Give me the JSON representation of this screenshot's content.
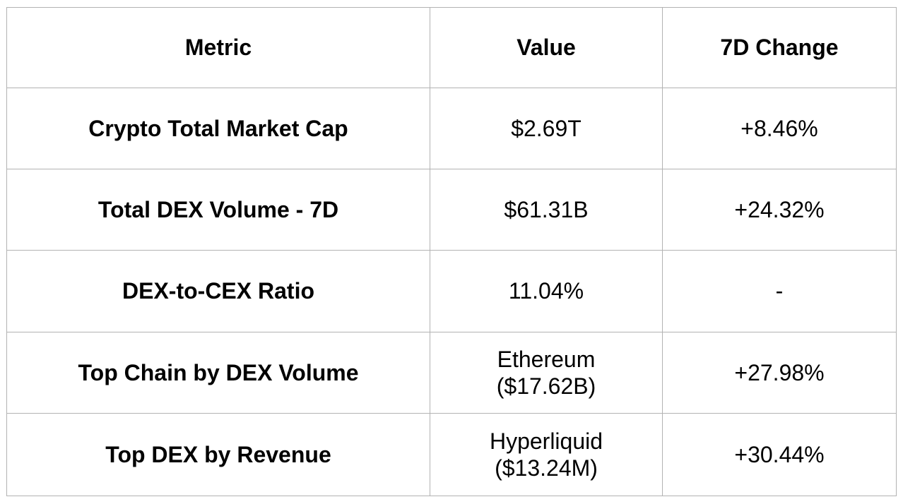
{
  "chart_data": {
    "type": "table",
    "columns": [
      "Metric",
      "Value",
      "7D Change"
    ],
    "rows": [
      [
        "Crypto Total Market Cap",
        "$2.69T",
        "+8.46%"
      ],
      [
        "Total DEX Volume - 7D",
        "$61.31B",
        "+24.32%"
      ],
      [
        "DEX-to-CEX Ratio",
        "11.04%",
        "-"
      ],
      [
        "Top Chain by DEX Volume",
        "Ethereum ($17.62B)",
        "+27.98%"
      ],
      [
        "Top DEX by Revenue",
        "Hyperliquid ($13.24M)",
        "+30.44%"
      ]
    ]
  },
  "table": {
    "headers": {
      "metric": "Metric",
      "value": "Value",
      "change": "7D Change"
    },
    "rows": [
      {
        "metric": "Crypto Total Market Cap",
        "value": "$2.69T",
        "change": "+8.46%"
      },
      {
        "metric": "Total DEX Volume - 7D",
        "value": "$61.31B",
        "change": "+24.32%"
      },
      {
        "metric": "DEX-to-CEX Ratio",
        "value": "11.04%",
        "change": "-"
      },
      {
        "metric": "Top Chain by DEX Volume",
        "value": "Ethereum\n($17.62B)",
        "change": "+27.98%"
      },
      {
        "metric": "Top DEX by Revenue",
        "value": "Hyperliquid\n($13.24M)",
        "change": "+30.44%"
      }
    ]
  },
  "colors": {
    "border_gray": "#b2b2b2",
    "text_black": "#000000",
    "background_white": "#ffffff"
  }
}
